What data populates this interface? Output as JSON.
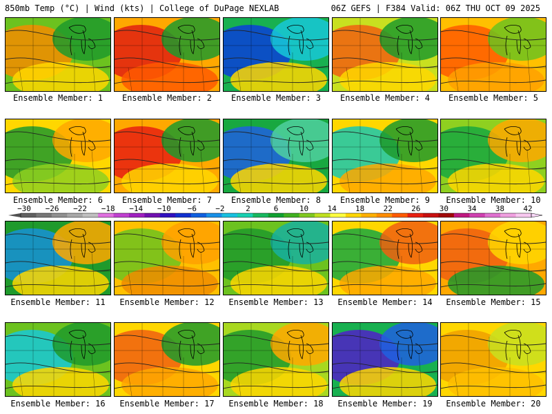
{
  "header": {
    "left": "850mb Temp (°C) | Wind (kts) | College of DuPage NEXLAB",
    "right": "06Z GEFS | F384 Valid: 06Z THU OCT 09 2025"
  },
  "caption_prefix": "Ensemble Member:",
  "members": [
    {
      "label": "Ensemble Member: 1",
      "number": 1,
      "fill": "#6cc21f",
      "blobs": [
        {
          "c": "#f48c00"
        },
        {
          "c": "#1f9a2c"
        },
        {
          "c": "#ffd700"
        }
      ]
    },
    {
      "label": "Ensemble Member: 2",
      "number": 2,
      "fill": "#ffa800",
      "blobs": [
        {
          "c": "#e02010"
        },
        {
          "c": "#1f9a2c"
        },
        {
          "c": "#ff5a00"
        }
      ]
    },
    {
      "label": "Ensemble Member: 3",
      "number": 3,
      "fill": "#18b050",
      "blobs": [
        {
          "c": "#0a3fd8"
        },
        {
          "c": "#18c8d8"
        },
        {
          "c": "#ffd700"
        }
      ]
    },
    {
      "label": "Ensemble Member: 4",
      "number": 4,
      "fill": "#c8e020",
      "blobs": [
        {
          "c": "#f06010"
        },
        {
          "c": "#1f9a2c"
        },
        {
          "c": "#ffd700"
        }
      ]
    },
    {
      "label": "Ensemble Member: 5",
      "number": 5,
      "fill": "#ffc000",
      "blobs": [
        {
          "c": "#ff5a00"
        },
        {
          "c": "#6cc21f"
        },
        {
          "c": "#ffa000"
        }
      ]
    },
    {
      "label": "Ensemble Member: 6",
      "number": 6,
      "fill": "#ffd700",
      "blobs": [
        {
          "c": "#1f9a2c"
        },
        {
          "c": "#ffa800"
        },
        {
          "c": "#8fd020"
        }
      ]
    },
    {
      "label": "Ensemble Member: 7",
      "number": 7,
      "fill": "#ffa800",
      "blobs": [
        {
          "c": "#e82010"
        },
        {
          "c": "#1f9a2c"
        },
        {
          "c": "#ffd700"
        }
      ]
    },
    {
      "label": "Ensemble Member: 8",
      "number": 8,
      "fill": "#18a840",
      "blobs": [
        {
          "c": "#2060e0"
        },
        {
          "c": "#50d0a0"
        },
        {
          "c": "#ffd700"
        }
      ]
    },
    {
      "label": "Ensemble Member: 9",
      "number": 9,
      "fill": "#ffd700",
      "blobs": [
        {
          "c": "#18c8b0"
        },
        {
          "c": "#1f9a2c"
        },
        {
          "c": "#ffa800"
        }
      ]
    },
    {
      "label": "Ensemble Member: 10",
      "number": 10,
      "fill": "#8fd020",
      "blobs": [
        {
          "c": "#18a840"
        },
        {
          "c": "#ffa800"
        },
        {
          "c": "#ffd700"
        }
      ]
    },
    {
      "label": "Ensemble Member: 11",
      "number": 11,
      "fill": "#1f9a2c",
      "blobs": [
        {
          "c": "#1890d8"
        },
        {
          "c": "#ffa800"
        },
        {
          "c": "#ffd700"
        }
      ]
    },
    {
      "label": "Ensemble Member: 12",
      "number": 12,
      "fill": "#ffc000",
      "blobs": [
        {
          "c": "#6cc21f"
        },
        {
          "c": "#ffa000"
        },
        {
          "c": "#f08c00"
        }
      ]
    },
    {
      "label": "Ensemble Member: 13",
      "number": 13,
      "fill": "#6cc21f",
      "blobs": [
        {
          "c": "#1f9a2c"
        },
        {
          "c": "#18b0a0"
        },
        {
          "c": "#ffd700"
        }
      ]
    },
    {
      "label": "Ensemble Member: 14",
      "number": 14,
      "fill": "#ffd700",
      "blobs": [
        {
          "c": "#18a840"
        },
        {
          "c": "#f06010"
        },
        {
          "c": "#ffa800"
        }
      ]
    },
    {
      "label": "Ensemble Member: 15",
      "number": 15,
      "fill": "#ffa800",
      "blobs": [
        {
          "c": "#f06010"
        },
        {
          "c": "#ffd700"
        },
        {
          "c": "#1f9a2c"
        }
      ]
    },
    {
      "label": "Ensemble Member: 16",
      "number": 16,
      "fill": "#6cc21f",
      "blobs": [
        {
          "c": "#18c8d8"
        },
        {
          "c": "#1f9a2c"
        },
        {
          "c": "#ffd700"
        }
      ]
    },
    {
      "label": "Ensemble Member: 17",
      "number": 17,
      "fill": "#ffd700",
      "blobs": [
        {
          "c": "#f06010"
        },
        {
          "c": "#1f9a2c"
        },
        {
          "c": "#ffa800"
        }
      ]
    },
    {
      "label": "Ensemble Member: 18",
      "number": 18,
      "fill": "#a8d820",
      "blobs": [
        {
          "c": "#1f9a2c"
        },
        {
          "c": "#ffa800"
        },
        {
          "c": "#ffd700"
        }
      ]
    },
    {
      "label": "Ensemble Member: 19",
      "number": 19,
      "fill": "#18b050",
      "blobs": [
        {
          "c": "#5020c8"
        },
        {
          "c": "#2060e0"
        },
        {
          "c": "#ffd700"
        }
      ]
    },
    {
      "label": "Ensemble Member: 20",
      "number": 20,
      "fill": "#ffd700",
      "blobs": [
        {
          "c": "#f0a000"
        },
        {
          "c": "#c8e020"
        },
        {
          "c": "#ffc000"
        }
      ]
    }
  ],
  "colorbar": {
    "labels": [
      "-30",
      "-26",
      "-22",
      "-18",
      "-14",
      "-10",
      "-6",
      "-2",
      "2",
      "6",
      "10",
      "14",
      "18",
      "22",
      "26",
      "30",
      "34",
      "38",
      "42"
    ],
    "colors": [
      "#606060",
      "#787878",
      "#909090",
      "#a8a8a8",
      "#c0c0c0",
      "#e070e0",
      "#c040d0",
      "#a020c0",
      "#7010b0",
      "#3010c0",
      "#1030d0",
      "#1060e0",
      "#1890e8",
      "#18c0e0",
      "#18d0b0",
      "#18b860",
      "#10a030",
      "#40b020",
      "#80c820",
      "#c0e020",
      "#ffff40",
      "#ffd700",
      "#ffb000",
      "#ff8c00",
      "#ff5a00",
      "#e82010",
      "#c81010",
      "#a00808",
      "#c01880",
      "#d040b0",
      "#e070d0",
      "#f0a0e0",
      "#f8c8f0"
    ]
  }
}
